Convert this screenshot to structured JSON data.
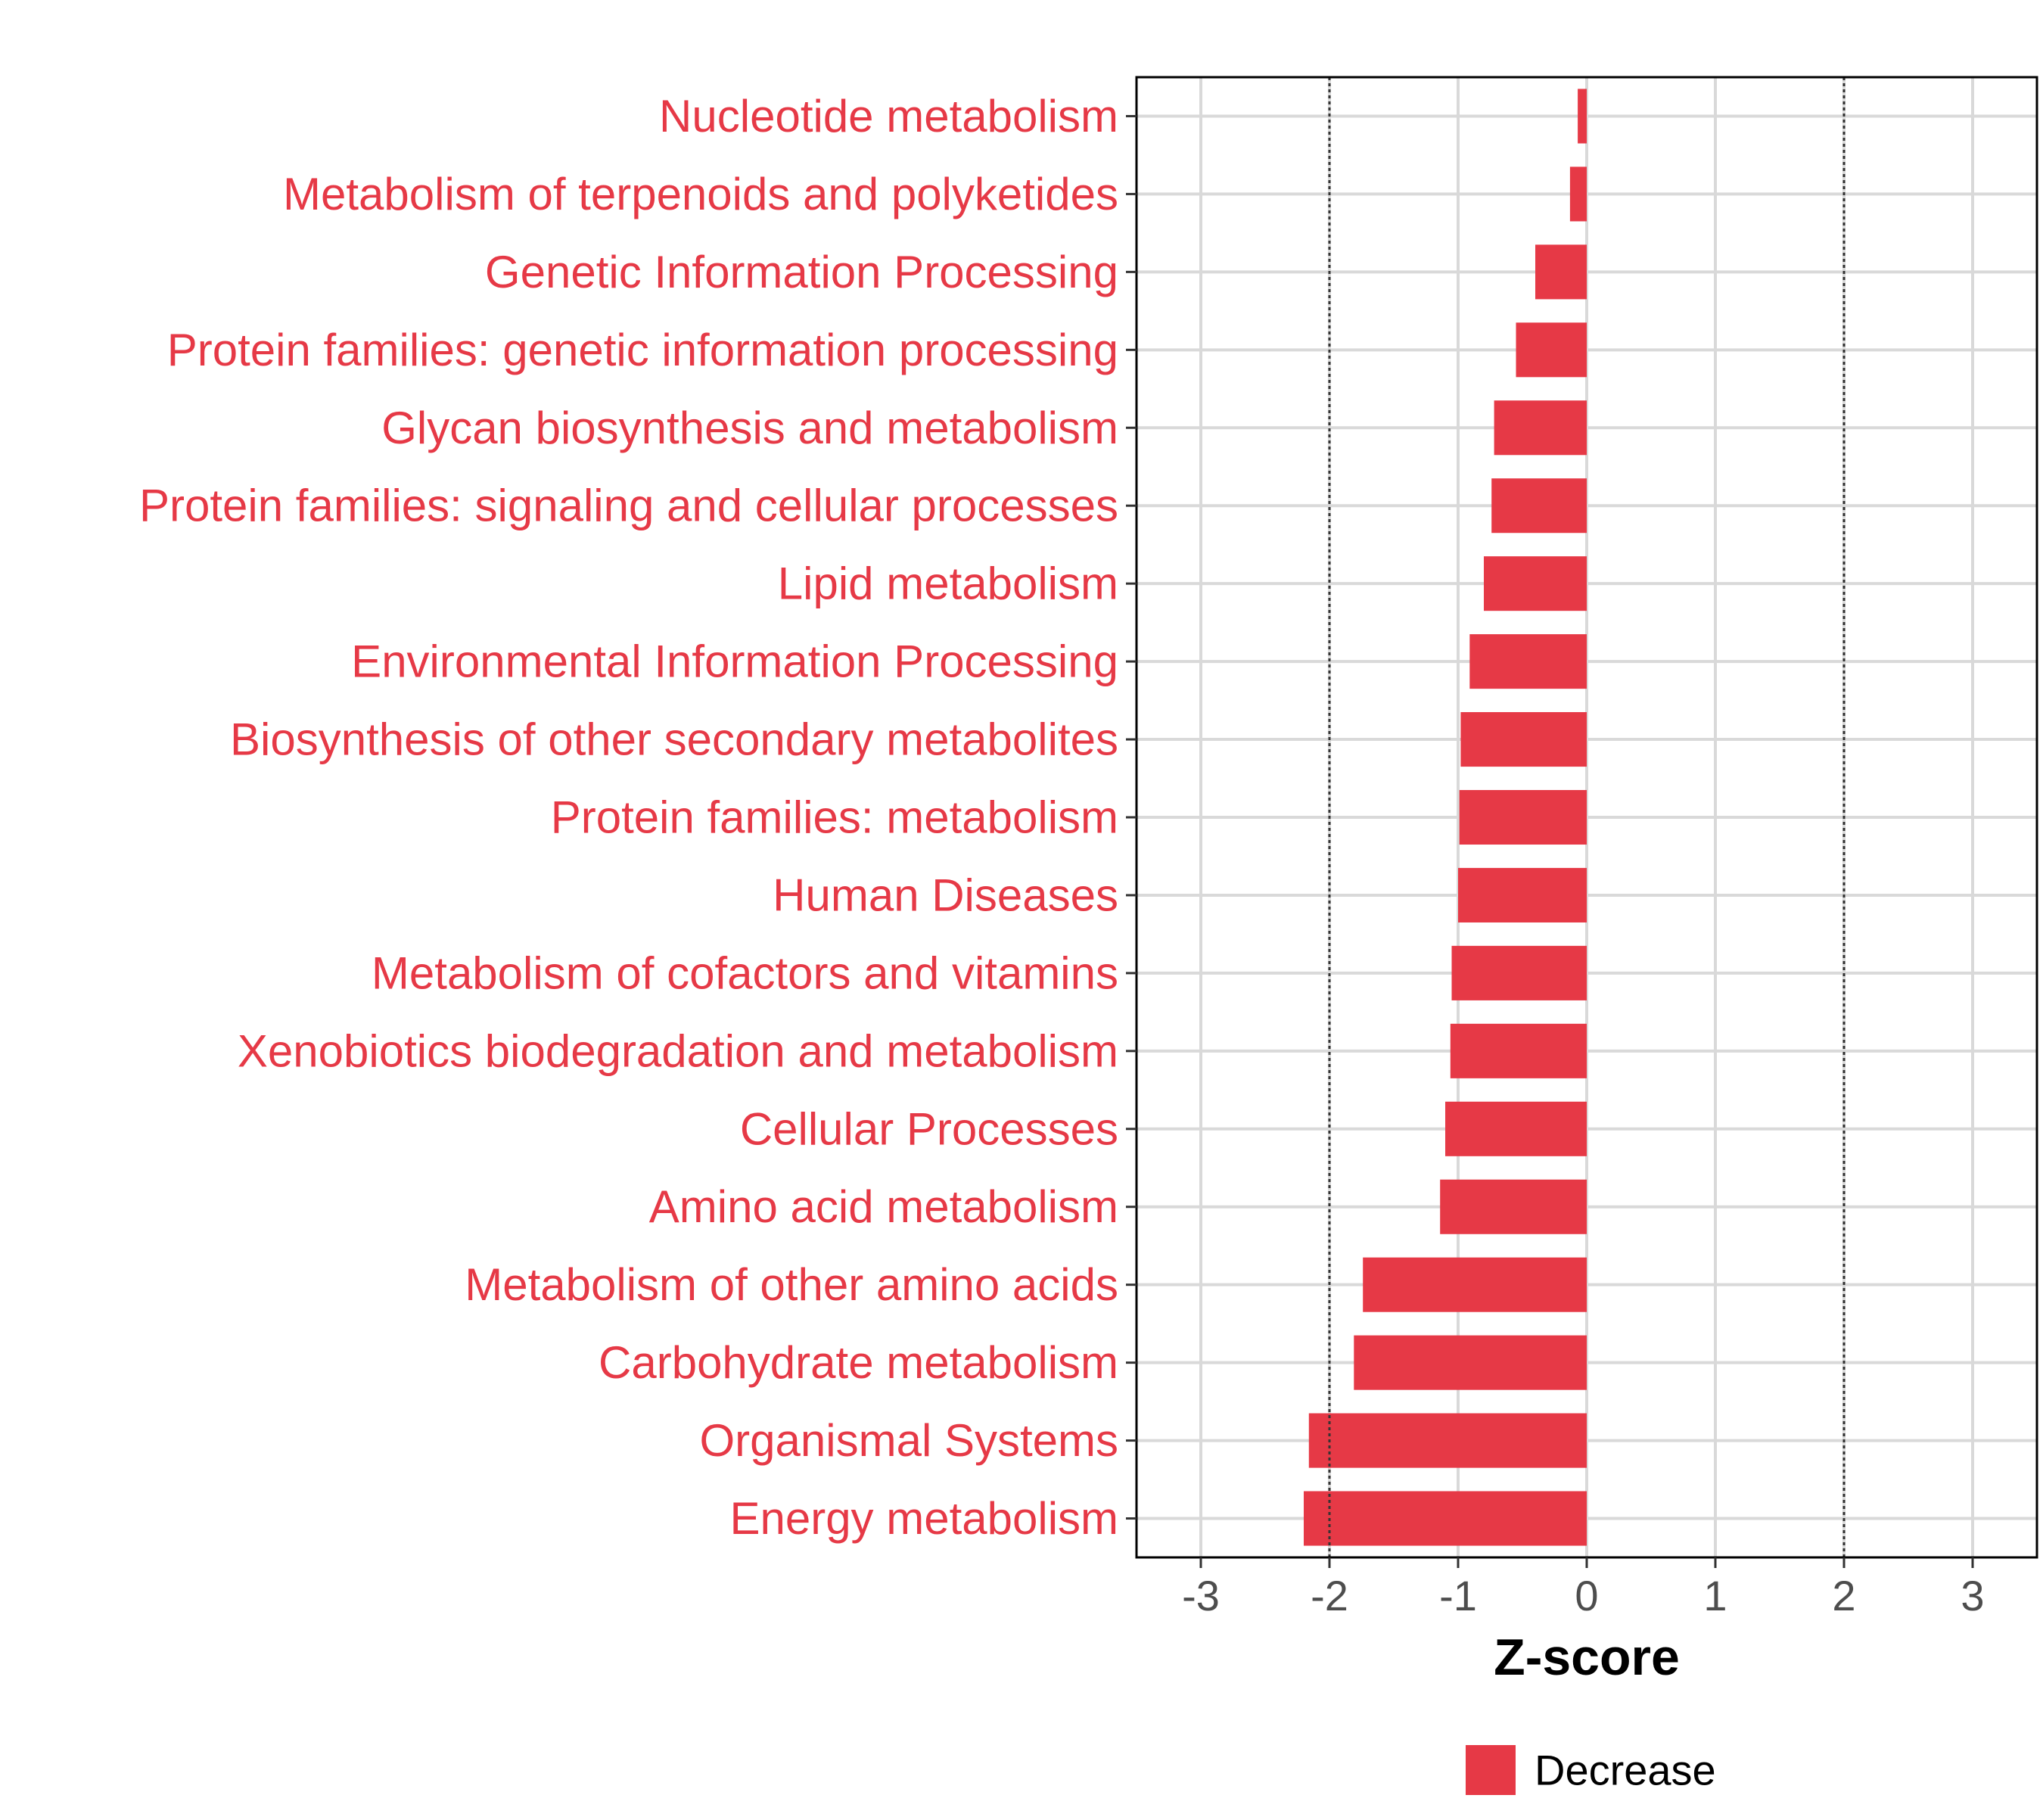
{
  "chart_data": {
    "type": "bar",
    "orientation": "horizontal",
    "categories": [
      "Nucleotide metabolism",
      "Metabolism of terpenoids and polyketides",
      "Genetic Information Processing",
      "Protein families: genetic information processing",
      "Glycan biosynthesis and metabolism",
      "Protein families: signaling and cellular processes",
      "Lipid metabolism",
      "Environmental Information Processing",
      "Biosynthesis of other secondary metabolites",
      "Protein families: metabolism",
      "Human Diseases",
      "Metabolism of cofactors and vitamins",
      "Xenobiotics biodegradation and metabolism",
      "Cellular Processes",
      "Amino acid metabolism",
      "Metabolism of other amino acids",
      "Carbohydrate metabolism",
      "Organismal Systems",
      "Energy metabolism"
    ],
    "series": [
      {
        "name": "Decrease",
        "color": "#E63946",
        "values": [
          -0.07,
          -0.13,
          -0.4,
          -0.55,
          -0.72,
          -0.74,
          -0.8,
          -0.91,
          -0.98,
          -0.99,
          -1.0,
          -1.05,
          -1.06,
          -1.1,
          -1.14,
          -1.74,
          -1.81,
          -2.16,
          -2.2
        ]
      }
    ],
    "xlabel": "Z-score",
    "ylabel": "",
    "xlim": [
      -3.5,
      3.5
    ],
    "xticks": [
      -3,
      -2,
      -1,
      0,
      1,
      2,
      3
    ],
    "xtick_labels": [
      "-3",
      "-2",
      "-1",
      "0",
      "1",
      "2",
      "3"
    ],
    "reference_lines": [
      -2,
      2
    ],
    "grid": true,
    "legend": {
      "position": "bottom",
      "entries": [
        "Decrease"
      ]
    },
    "category_label_color": "#E63946"
  }
}
